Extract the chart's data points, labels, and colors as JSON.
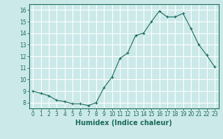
{
  "xlabel": "Humidex (Indice chaleur)",
  "x": [
    0,
    1,
    2,
    3,
    4,
    5,
    6,
    7,
    8,
    9,
    10,
    11,
    12,
    13,
    14,
    15,
    16,
    17,
    18,
    19,
    20,
    21,
    22,
    23
  ],
  "y": [
    9.0,
    8.8,
    8.6,
    8.2,
    8.1,
    7.9,
    7.9,
    7.75,
    8.0,
    9.3,
    10.2,
    11.8,
    12.3,
    13.8,
    14.0,
    15.0,
    15.9,
    15.4,
    15.4,
    15.7,
    14.4,
    13.0,
    12.1,
    11.1
  ],
  "line_color": "#1a6b5a",
  "marker": "+",
  "marker_size": 3,
  "marker_linewidth": 0.8,
  "line_width": 0.8,
  "bg_color": "#cce9e9",
  "grid_color": "#ffffff",
  "xlim": [
    -0.5,
    23.5
  ],
  "ylim": [
    7.5,
    16.5
  ],
  "yticks": [
    8,
    9,
    10,
    11,
    12,
    13,
    14,
    15,
    16
  ],
  "xticks": [
    0,
    1,
    2,
    3,
    4,
    5,
    6,
    7,
    8,
    9,
    10,
    11,
    12,
    13,
    14,
    15,
    16,
    17,
    18,
    19,
    20,
    21,
    22,
    23
  ],
  "tick_fontsize": 5.5,
  "xlabel_fontsize": 7,
  "label_color": "#1a6b5a",
  "spine_color": "#1a6b5a"
}
